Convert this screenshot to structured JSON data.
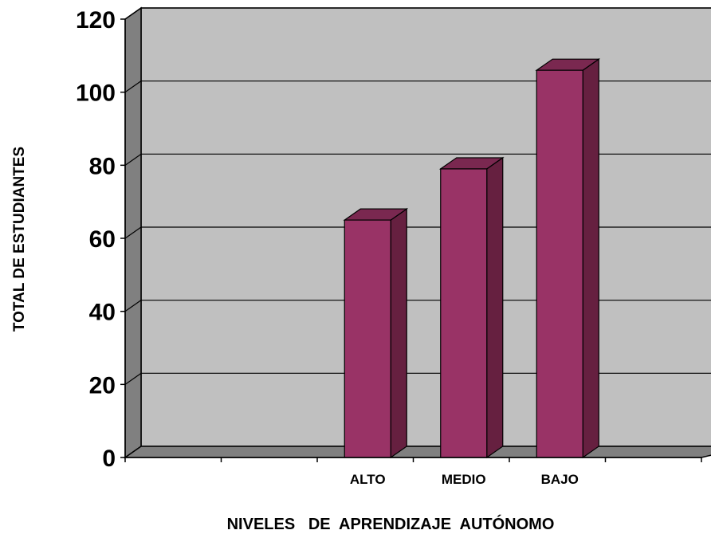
{
  "chart_data": {
    "type": "bar",
    "title": "",
    "xlabel": "NIVELES   DE  APRENDIZAJE  AUTÓNOMO",
    "ylabel": "TOTAL  DE  ESTUDIANTES",
    "categories": [
      "",
      "",
      "ALTO",
      "MEDIO",
      "BAJO",
      ""
    ],
    "values": [
      null,
      null,
      65,
      79,
      106,
      null
    ],
    "ylim": [
      0,
      120
    ],
    "yticks": [
      "0",
      "20",
      "40",
      "60",
      "80",
      "100",
      "120"
    ],
    "grid": true,
    "legend": "none",
    "style": "3d-column"
  },
  "colors": {
    "bar_front": "#993366",
    "bar_side": "#662040",
    "bar_top": "#7a2850",
    "back_wall": "#c0c0c0",
    "side_wall": "#808080",
    "floor": "#808080",
    "gridline": "#000000"
  }
}
